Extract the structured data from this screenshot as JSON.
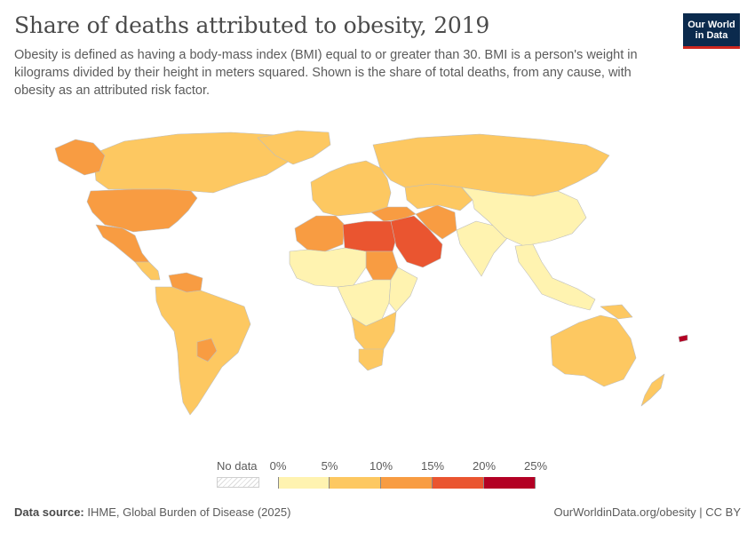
{
  "header": {
    "title": "Share of deaths attributed to obesity, 2019",
    "subtitle": "Obesity is defined as having a body-mass index (BMI) equal to or greater than 30. BMI is a person's weight in kilograms divided by their height in meters squared. Shown is the share of total deaths, from any cause, with obesity as an attributed risk factor."
  },
  "logo": {
    "line1": "Our World",
    "line2": "in Data"
  },
  "legend": {
    "no_data_label": "No data",
    "ticks": [
      "0%",
      "5%",
      "10%",
      "15%",
      "20%",
      "25%"
    ],
    "bins": [
      {
        "range": "0-5%",
        "color": "#fff3b0"
      },
      {
        "range": "5-10%",
        "color": "#fdc861"
      },
      {
        "range": "10-15%",
        "color": "#f89c42"
      },
      {
        "range": "15-20%",
        "color": "#ea5530"
      },
      {
        "range": "20-25%",
        "color": "#b30024"
      }
    ]
  },
  "colors": {
    "no_data": "#e6e6e6",
    "ocean": "#ffffff",
    "border": "#bdbdbd"
  },
  "regions": [
    {
      "name": "Canada",
      "bin": 1
    },
    {
      "name": "Alaska",
      "bin": 2
    },
    {
      "name": "United States",
      "bin": 2
    },
    {
      "name": "Greenland",
      "bin": 1
    },
    {
      "name": "Mexico",
      "bin": 2
    },
    {
      "name": "Central America",
      "bin": 1
    },
    {
      "name": "Venezuela",
      "bin": 2
    },
    {
      "name": "South America",
      "bin": 1
    },
    {
      "name": "Paraguay",
      "bin": 2
    },
    {
      "name": "Europe",
      "bin": 1
    },
    {
      "name": "Russia",
      "bin": 1
    },
    {
      "name": "Turkey",
      "bin": 2
    },
    {
      "name": "North Africa",
      "bin": 2
    },
    {
      "name": "Libya and Egypt",
      "bin": 3
    },
    {
      "name": "Sudan",
      "bin": 2
    },
    {
      "name": "Arabian Peninsula",
      "bin": 3
    },
    {
      "name": "Iran",
      "bin": 2
    },
    {
      "name": "Central Asia",
      "bin": 1
    },
    {
      "name": "West Africa",
      "bin": 0
    },
    {
      "name": "Central Africa",
      "bin": 0
    },
    {
      "name": "East Africa",
      "bin": 0
    },
    {
      "name": "Southern Africa",
      "bin": 1
    },
    {
      "name": "South Africa",
      "bin": 1
    },
    {
      "name": "India",
      "bin": 0
    },
    {
      "name": "China",
      "bin": 0
    },
    {
      "name": "Southeast Asia",
      "bin": 0
    },
    {
      "name": "Australia",
      "bin": 1
    },
    {
      "name": "New Zealand",
      "bin": 1
    },
    {
      "name": "Papua New Guinea",
      "bin": 1
    },
    {
      "name": "Fiji",
      "bin": 4
    }
  ],
  "footer": {
    "source_label": "Data source:",
    "source_text": "IHME, Global Burden of Disease (2025)",
    "link_text": "OurWorldinData.org/obesity",
    "license": "CC BY"
  }
}
